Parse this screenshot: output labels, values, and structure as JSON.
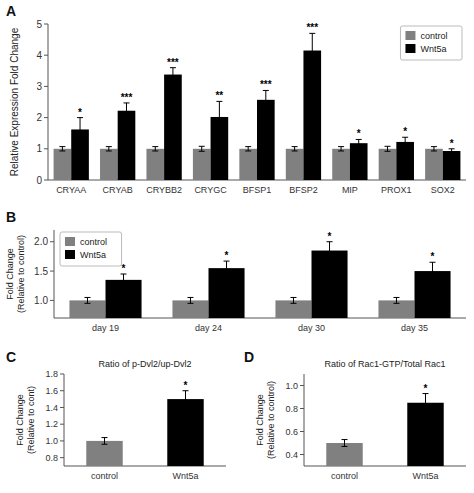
{
  "chart_data": [
    {
      "type": "bar",
      "annotations": [
        "A"
      ],
      "categories": [
        "CRYAA",
        "CRYAB",
        "CRYBB2",
        "CRYGC",
        "BFSP1",
        "BFSP2",
        "MIP",
        "PROX1",
        "SOX2"
      ],
      "series": [
        {
          "name": "control",
          "color": "#808080",
          "values": [
            1.0,
            1.0,
            1.0,
            1.0,
            1.0,
            1.0,
            1.0,
            1.0,
            1.0
          ],
          "errors": [
            0.07,
            0.07,
            0.07,
            0.08,
            0.07,
            0.07,
            0.07,
            0.08,
            0.07
          ]
        },
        {
          "name": "Wnt5a",
          "color": "#000000",
          "values": [
            1.62,
            2.22,
            3.38,
            2.02,
            2.57,
            4.15,
            1.18,
            1.22,
            0.93
          ],
          "errors": [
            0.38,
            0.25,
            0.22,
            0.5,
            0.3,
            0.55,
            0.12,
            0.15,
            0.07
          ],
          "annotations": [
            "*",
            "***",
            "***",
            "**",
            "***",
            "***",
            "*",
            "*",
            "*"
          ]
        }
      ],
      "ylabel": "Relative Expression Fold Change",
      "ylim": [
        0,
        5
      ],
      "yticks": [
        0,
        1,
        2,
        3,
        4,
        5
      ],
      "legend": "upper right"
    },
    {
      "type": "bar",
      "annotations": [
        "B"
      ],
      "categories": [
        "day 19",
        "day 24",
        "day 30",
        "day 35"
      ],
      "series": [
        {
          "name": "control",
          "color": "#808080",
          "values": [
            1.0,
            1.0,
            1.0,
            1.0
          ],
          "errors": [
            0.05,
            0.05,
            0.05,
            0.05
          ]
        },
        {
          "name": "Wnt5a",
          "color": "#000000",
          "values": [
            1.35,
            1.55,
            1.85,
            1.5
          ],
          "errors": [
            0.1,
            0.12,
            0.15,
            0.15
          ],
          "annotations": [
            "*",
            "*",
            "*",
            "*"
          ]
        }
      ],
      "ylabel": "Fold Change\n(Relative to control)",
      "ylim": [
        0.7,
        2.2
      ],
      "yticks": [
        {
          "value": 1.0,
          "label": "1.0"
        },
        1.5,
        {
          "value": 2.0,
          "label": "2.0"
        }
      ],
      "legend": "upper left"
    },
    {
      "type": "bar",
      "annotations": [
        "C"
      ],
      "title": "Ratio of p-Dvl2/up-Dvl2",
      "categories": [
        "control",
        "Wnt5a"
      ],
      "series": [
        {
          "values": [
            1.0,
            1.5
          ],
          "errors": [
            0.04,
            0.1
          ],
          "colors": [
            "#808080",
            "#000000"
          ],
          "annotations": [
            null,
            "*"
          ]
        }
      ],
      "ylabel": "Fold Change\n(Relative to cont)",
      "ylim": [
        0.7,
        1.8
      ],
      "yticks": [
        0.8,
        {
          "value": 1.0,
          "label": "1.0"
        },
        1.2,
        1.4,
        1.6,
        1.8
      ]
    },
    {
      "type": "bar",
      "annotations": [
        "D"
      ],
      "title": "Ratio of Rac1-GTP/Total Rac1",
      "categories": [
        "control",
        "Wnt5a"
      ],
      "series": [
        {
          "values": [
            0.5,
            0.85
          ],
          "errors": [
            0.03,
            0.08
          ],
          "colors": [
            "#808080",
            "#000000"
          ],
          "annotations": [
            null,
            "*"
          ]
        }
      ],
      "ylabel": "Fold Change\n(Relative to control)",
      "ylim": [
        0.3,
        1.1
      ],
      "yticks": [
        0.4,
        0.6,
        0.8,
        {
          "value": 1.0,
          "label": "1.0"
        }
      ]
    }
  ]
}
